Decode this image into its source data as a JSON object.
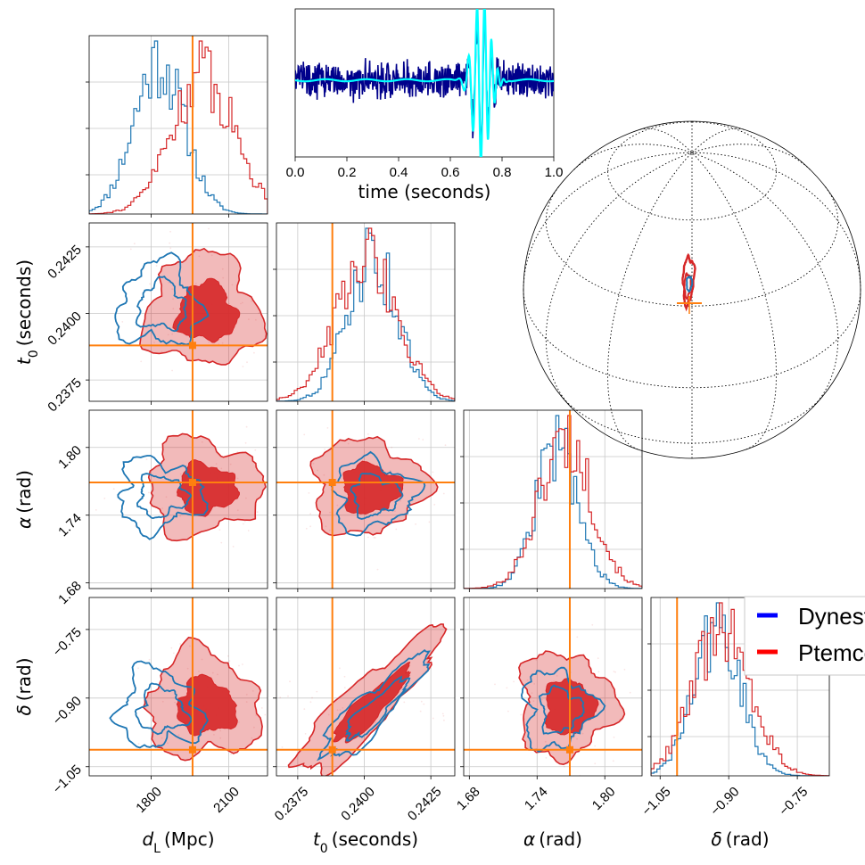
{
  "colors": {
    "dynesty": "#1f77b4",
    "ptemcee": "#d62728",
    "truth": "#ff7f0e",
    "strain_raw": "#00008b",
    "strain_signal": "#00ffff",
    "legend_dynesty": "#0000ff",
    "legend_ptemcee": "#ff0000"
  },
  "legend": {
    "items": [
      {
        "label": "Dynesty",
        "color_key": "legend_dynesty"
      },
      {
        "label": "Ptemcee",
        "color_key": "legend_ptemcee"
      }
    ]
  },
  "chart_data": [
    {
      "type": "line",
      "panel": "strain",
      "xlabel": "time (seconds)",
      "xlim": [
        0,
        1
      ],
      "xticks": [
        "0.0",
        "0.2",
        "0.4",
        "0.6",
        "0.8",
        "1.0"
      ],
      "grid": false,
      "series": [
        {
          "color_key": "strain_raw",
          "kind": "noisy_data"
        },
        {
          "color_key": "strain_signal",
          "kind": "chirp_signal",
          "peak_time": 0.72
        }
      ]
    },
    {
      "type": "corner",
      "panel": "posteriors",
      "parameters": [
        {
          "key": "dL",
          "label": "d_L (Mpc)",
          "range": [
            1560,
            2250
          ],
          "ticks": [
            "1800",
            "2100"
          ],
          "tick_values": [
            1800,
            2100
          ],
          "truth": 1960,
          "dynesty_mean": 1830,
          "ptemcee_mean": 2000
        },
        {
          "key": "t0",
          "label": "t_0 (seconds)",
          "range": [
            0.2367,
            0.2434
          ],
          "ticks": [
            "0.2375",
            "0.2400",
            "0.2425"
          ],
          "tick_values": [
            0.2375,
            0.24,
            0.2425
          ],
          "truth": 0.2388,
          "dynesty_mean": 0.2403,
          "ptemcee_mean": 0.2401
        },
        {
          "key": "alpha",
          "label": "α (rad)",
          "range": [
            1.675,
            1.833
          ],
          "ticks": [
            "1.68",
            "1.74",
            "1.80"
          ],
          "tick_values": [
            1.68,
            1.74,
            1.8
          ],
          "truth": 1.769,
          "dynesty_mean": 1.758,
          "ptemcee_mean": 1.765
        },
        {
          "key": "delta",
          "label": "δ (rad)",
          "range": [
            -1.07,
            -0.68
          ],
          "ticks": [
            "−1.05",
            "−0.90",
            "−0.75"
          ],
          "tick_values": [
            -1.05,
            -0.9,
            -0.75
          ],
          "truth": -1.013,
          "dynesty_mean": -0.925,
          "ptemcee_mean": -0.915
        }
      ],
      "series": [
        {
          "sampler": "dynesty",
          "color_key": "dynesty"
        },
        {
          "sampler": "ptemcee",
          "color_key": "ptemcee"
        }
      ]
    },
    {
      "type": "map",
      "panel": "sky",
      "projection": "orthographic",
      "contours": [
        {
          "sampler": "ptemcee",
          "color_key": "ptemcee"
        },
        {
          "sampler": "dynesty",
          "color_key": "dynesty"
        }
      ],
      "truth_marker_color_key": "truth"
    }
  ]
}
